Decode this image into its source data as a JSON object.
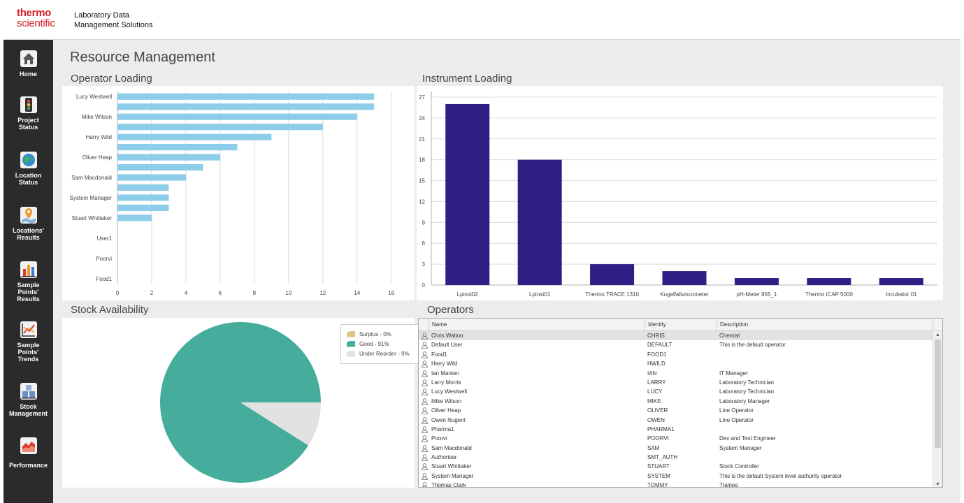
{
  "brand": {
    "line1": "thermo",
    "line2": "scientific"
  },
  "app": {
    "name_line1": "Laboratory Data",
    "name_line2": "Management Solutions"
  },
  "nav": [
    {
      "label": "Home",
      "icon": "home-icon"
    },
    {
      "label": "Project\nStatus",
      "icon": "traffic-light-icon"
    },
    {
      "label": "Location\nStatus",
      "icon": "globe-icon"
    },
    {
      "label": "Locations'\nResults",
      "icon": "map-pin-icon"
    },
    {
      "label": "Sample\nPoints'\nResults",
      "icon": "bar-chart-icon"
    },
    {
      "label": "Sample\nPoints'\nTrends",
      "icon": "trend-chart-icon"
    },
    {
      "label": "Stock\nManagement",
      "icon": "stock-boxes-icon"
    },
    {
      "label": "Performance",
      "icon": "area-chart-icon"
    }
  ],
  "page": {
    "title": "Resource Management"
  },
  "panels": {
    "operator_loading": "Operator Loading",
    "instrument_loading": "Instrument Loading",
    "stock_availability": "Stock Availability",
    "operators": "Operators"
  },
  "colors": {
    "operator_bar": "#8ecdea",
    "instrument_bar": "#2e1f85",
    "surplus": "#dcc87a",
    "good": "#46ad9c",
    "under_reorder": "#e2e2e2"
  },
  "chart_data": [
    {
      "type": "bar",
      "orientation": "horizontal",
      "categories": [
        "Lucy Westwell",
        "",
        "Mike Wilson",
        "",
        "Harry Wild",
        "",
        "Oliver Heap",
        "",
        "Sam Macdonald",
        "",
        "System Manager",
        "",
        "Stuart Whittaker",
        "",
        "User1",
        "",
        "Poorvi",
        "",
        "Food1"
      ],
      "values": [
        15,
        15,
        14,
        12,
        9,
        7,
        6,
        5,
        4,
        3,
        3,
        3,
        2,
        0,
        0,
        0,
        0,
        0,
        0
      ],
      "xlim": [
        0,
        16.5
      ],
      "xticks": [
        0,
        2,
        4,
        6,
        8,
        10,
        12,
        14,
        16
      ],
      "grid": true
    },
    {
      "type": "bar",
      "categories": [
        "Lpinst02",
        "Lpinst01",
        "Thermo TRACE 1310",
        "Kugelfallviscometer",
        "pH-Meter 855_1",
        "Thermo iCAP 5000",
        "Incubator 01"
      ],
      "values": [
        26,
        18,
        3,
        2,
        1,
        1,
        1
      ],
      "ylim": [
        0,
        27.8
      ],
      "yticks": [
        0,
        3,
        6,
        9,
        12,
        15,
        18,
        21,
        24,
        27
      ],
      "grid": true
    },
    {
      "type": "pie",
      "labels": [
        "Surplus - 0%",
        "Good - 91%",
        "Under Reorder - 9%"
      ],
      "values": [
        0,
        91,
        9
      ],
      "legend": "top-right"
    }
  ],
  "operators_grid": {
    "columns": [
      "Name",
      "Identity",
      "Description"
    ],
    "rows": [
      [
        "Chris Walton",
        "CHRIS",
        "Chemist"
      ],
      [
        "Default User",
        "DEFAULT",
        "This is the default operator"
      ],
      [
        "Food1",
        "FOOD1",
        ""
      ],
      [
        "Harry Wild",
        "HWILD",
        ""
      ],
      [
        "Ian Manten",
        "IAN",
        "IT Manager"
      ],
      [
        "Larry Morris",
        "LARRY",
        "Laboratory Technician"
      ],
      [
        "Lucy Westwell",
        "LUCY",
        "Laboratory Technician"
      ],
      [
        "Mike Wilson",
        "MIKE",
        "Laboratory Manager"
      ],
      [
        "Oliver Heap",
        "OLIVER",
        "Line Operator"
      ],
      [
        "Owen Nugent",
        "OWEN",
        "Line Operator"
      ],
      [
        "Pharma1",
        "PHARMA1",
        ""
      ],
      [
        "Poorvi",
        "POORVI",
        "Dev and Test Engineer"
      ],
      [
        "Sam Macdonald",
        "SAM",
        "System Manager"
      ],
      [
        "Authoriser",
        "SMT_AUTH",
        ""
      ],
      [
        "Stuart Whittaker",
        "STUART",
        "Stock Controller"
      ],
      [
        "System Manager",
        "SYSTEM",
        "This is the default System level authority operator"
      ],
      [
        "Thomas Clark",
        "TOMMY",
        "Trainee"
      ]
    ],
    "selected_index": 0
  }
}
